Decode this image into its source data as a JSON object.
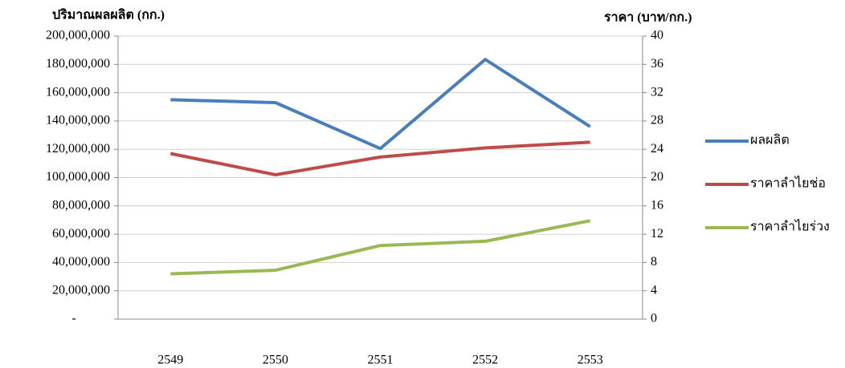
{
  "chart_data": {
    "type": "line",
    "y_label": "ปริมาณผลผลิต (กก.)",
    "y2_label": "ราคา (บาท/กก.)",
    "categories": [
      "2549",
      "2550",
      "2551",
      "2552",
      "2553"
    ],
    "series": [
      {
        "name": "ผลผลิต",
        "color": "#4a7ebb",
        "values": [
          155000000,
          153000000,
          120500000,
          183500000,
          136000000
        ]
      },
      {
        "name": "ราคาลำไยช่อ",
        "color": "#be4b48",
        "axis": "y2",
        "values": [
          23.4,
          20.4,
          22.9,
          24.2,
          25
        ]
      },
      {
        "name": "ราคาลำไยร่วง",
        "color": "#98b954",
        "axis": "y2",
        "values": [
          6.4,
          6.9,
          10.4,
          11,
          13.9
        ]
      }
    ],
    "ylim": [
      0,
      200000000
    ],
    "yticks": [
      {
        "value": 0,
        "label": "-"
      },
      {
        "value": 20000000,
        "label": "20,000,000"
      },
      {
        "value": 40000000,
        "label": "40,000,000"
      },
      {
        "value": 60000000,
        "label": "60,000,000"
      },
      {
        "value": 80000000,
        "label": "80,000,000"
      },
      {
        "value": 100000000,
        "label": "100,000,000"
      },
      {
        "value": 120000000,
        "label": "120,000,000"
      },
      {
        "value": 140000000,
        "label": "140,000,000"
      },
      {
        "value": 160000000,
        "label": "160,000,000"
      },
      {
        "value": 180000000,
        "label": "180,000,000"
      },
      {
        "value": 200000000,
        "label": "200,000,000"
      }
    ],
    "y2lim": [
      0,
      40
    ],
    "y2ticks": [
      0,
      4,
      8,
      12,
      16,
      20,
      24,
      28,
      32,
      36,
      40
    ],
    "grid": true,
    "legend": "right"
  }
}
